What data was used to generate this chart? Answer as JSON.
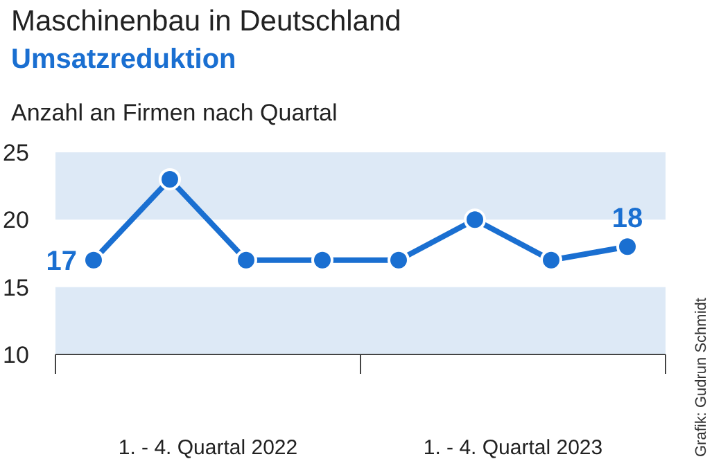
{
  "chart_data": {
    "type": "line",
    "title": "Maschinenbau in Deutschland",
    "subtitle": "Umsatzreduktion",
    "ylabel": "Anzahl an Firmen nach Quartal",
    "categories": [
      null,
      null,
      null,
      null,
      null,
      null,
      null,
      null
    ],
    "series": [
      {
        "color": "#1a6fd1",
        "values": [
          17,
          23,
          17,
          17,
          17,
          20,
          17,
          18
        ],
        "value_labels": [
          "17",
          null,
          null,
          null,
          null,
          null,
          null,
          "18"
        ]
      }
    ],
    "ylim": [
      10,
      25
    ],
    "yticks": [
      10,
      15,
      20,
      25
    ],
    "grid": false,
    "marker": "circle",
    "line_style": "solid",
    "bands": [
      {
        "axis": "y",
        "from": 20,
        "to": 25,
        "color": "#dde9f6"
      },
      {
        "axis": "y",
        "from": 10,
        "to": 15,
        "color": "#dde9f6"
      }
    ],
    "annotations": [
      "1. - 4. Quartal 2022",
      "1. - 4. Quartal 2023",
      "Grafik: Gudrun Schmidt"
    ]
  }
}
